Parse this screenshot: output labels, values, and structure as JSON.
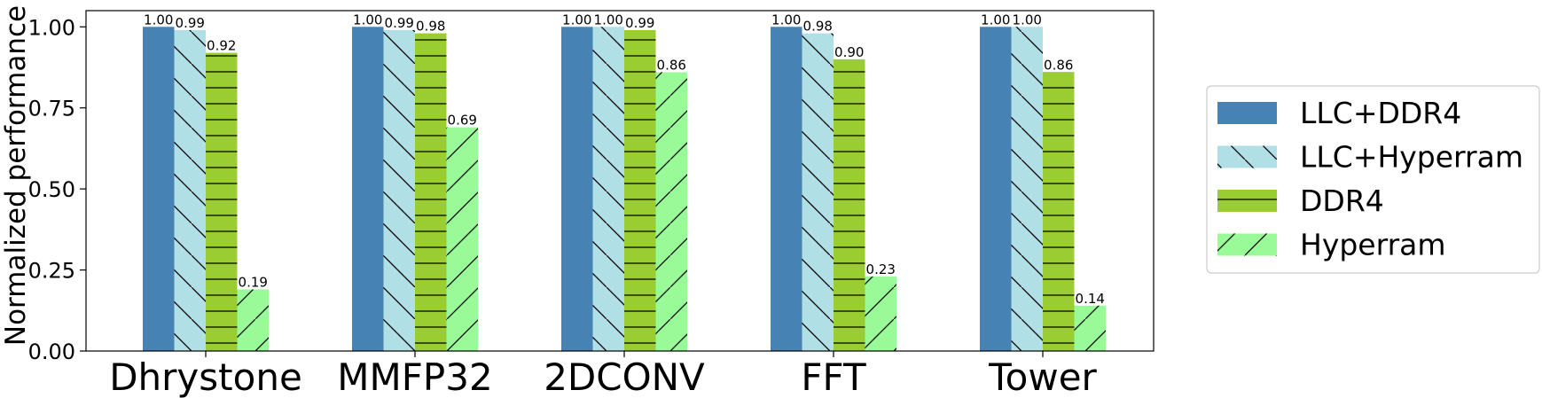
{
  "chart_data": {
    "type": "bar",
    "title": "",
    "xlabel": "",
    "ylabel": "Normalized performance",
    "ylim": [
      0,
      1.05
    ],
    "yticks": [
      "0.00",
      "0.25",
      "0.50",
      "0.75",
      "1.00"
    ],
    "grid": false,
    "legend_position": "right",
    "categories": [
      "Dhrystone",
      "MMFP32",
      "2DCONV",
      "FFT",
      "Tower"
    ],
    "series": [
      {
        "name": "LLC+DDR4",
        "values": [
          1.0,
          1.0,
          1.0,
          1.0,
          1.0
        ],
        "labels": [
          "1.00",
          "1.00",
          "1.00",
          "1.00",
          "1.00"
        ],
        "color": "#4682b4",
        "hatch": "none"
      },
      {
        "name": "LLC+Hyperram",
        "values": [
          0.99,
          0.99,
          1.0,
          0.98,
          1.0
        ],
        "labels": [
          "0.99",
          "0.99",
          "1.00",
          "0.98",
          "1.00"
        ],
        "color": "#b0e0e6",
        "hatch": "backslash"
      },
      {
        "name": "DDR4",
        "values": [
          0.92,
          0.98,
          0.99,
          0.9,
          0.86
        ],
        "labels": [
          "0.92",
          "0.98",
          "0.99",
          "0.90",
          "0.86"
        ],
        "color": "#9acd32",
        "hatch": "horizontal"
      },
      {
        "name": "Hyperram",
        "values": [
          0.19,
          0.69,
          0.86,
          0.23,
          0.14
        ],
        "labels": [
          "0.19",
          "0.69",
          "0.86",
          "0.23",
          "0.14"
        ],
        "color": "#98fb98",
        "hatch": "slash"
      }
    ]
  }
}
